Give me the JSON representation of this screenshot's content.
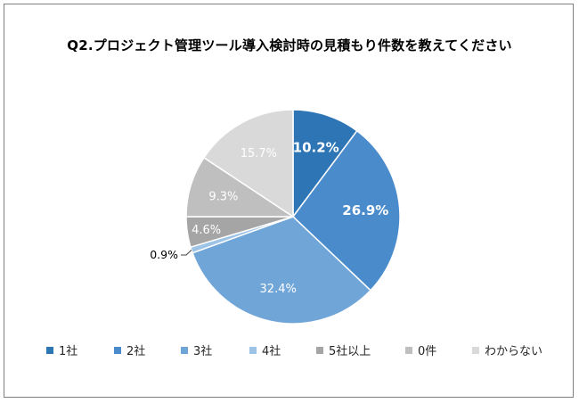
{
  "chart_data": {
    "type": "pie",
    "title": "Q2.プロジェクト管理ツール導入検討時の見積もり件数を教えてください",
    "categories": [
      "1社",
      "2社",
      "3社",
      "4社",
      "5社以上",
      "0件",
      "わからない"
    ],
    "values": [
      10.2,
      26.9,
      32.4,
      0.9,
      4.6,
      9.3,
      15.7
    ],
    "value_labels": [
      "10.2%",
      "26.9%",
      "32.4%",
      "0.9%",
      "4.6%",
      "9.3%",
      "15.7%"
    ],
    "colors": [
      "#2e75b6",
      "#4a8bcb",
      "#70a5d8",
      "#9dc3e6",
      "#a5a5a5",
      "#bfbfbf",
      "#d9d9d9"
    ],
    "label_colors": [
      "#ffffff",
      "#ffffff",
      "#ffffff",
      "#000000",
      "#ffffff",
      "#ffffff",
      "#ffffff"
    ],
    "start_angle": "12 o'clock, clockwise",
    "legend_position": "bottom"
  }
}
